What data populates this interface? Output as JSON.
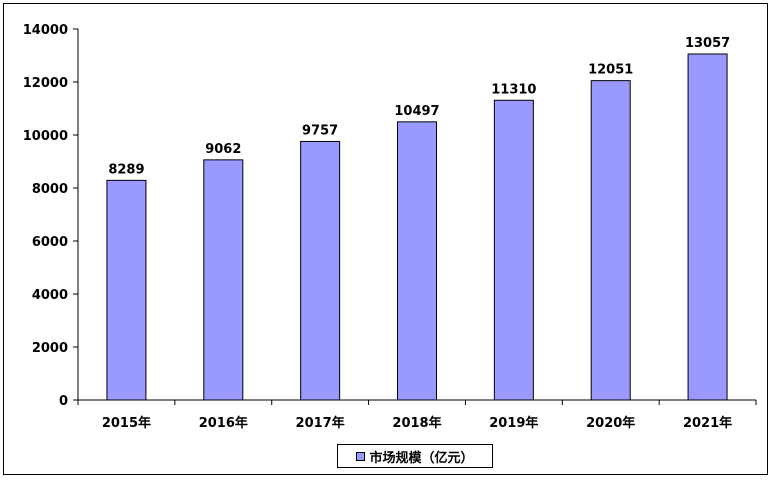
{
  "chart_data": {
    "type": "bar",
    "categories": [
      "2015年",
      "2016年",
      "2017年",
      "2018年",
      "2019年",
      "2020年",
      "2021年"
    ],
    "series": [
      {
        "name": "市场规模（亿元）",
        "values": [
          8289,
          9062,
          9757,
          10497,
          11310,
          12051,
          13057
        ]
      }
    ],
    "ylim": [
      0,
      14000
    ],
    "yticks": [
      0,
      2000,
      4000,
      6000,
      8000,
      10000,
      12000,
      14000
    ],
    "data_labels": [
      "8289",
      "9062",
      "9757",
      "10497",
      "11310",
      "12051",
      "13057"
    ],
    "grid": false,
    "legend_position": "bottom",
    "colors": {
      "bar": "#9999ff",
      "bar_edge": "#000000",
      "axis": "#000000"
    }
  }
}
